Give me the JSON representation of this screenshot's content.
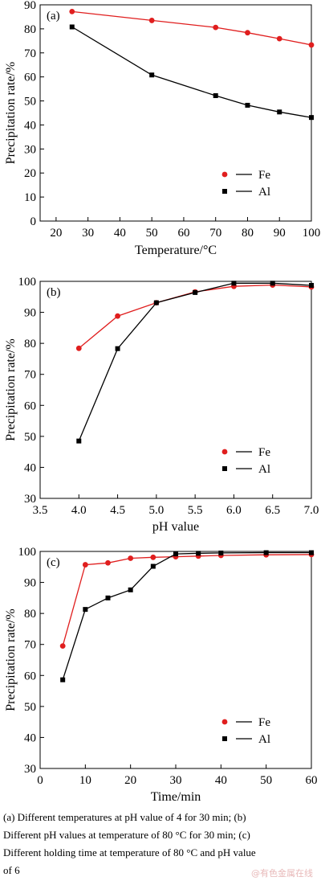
{
  "colors": {
    "fe": "#e01e1e",
    "al": "#000000"
  },
  "chart_data": [
    {
      "type": "line",
      "panel_label": "(a)",
      "xlabel": "Temperature/°C",
      "ylabel": "Precipitation rate/%",
      "xlim": [
        15,
        100
      ],
      "ylim": [
        0,
        90
      ],
      "xticks": [
        20,
        30,
        40,
        50,
        60,
        70,
        80,
        90,
        100
      ],
      "xtick_labels": [
        "20",
        "30",
        "40",
        "50",
        "60",
        "70",
        "80",
        "90",
        "100"
      ],
      "yticks": [
        0,
        10,
        20,
        30,
        40,
        50,
        60,
        70,
        80,
        90
      ],
      "ytick_labels": [
        "0",
        "10",
        "20",
        "30",
        "40",
        "50",
        "60",
        "70",
        "80",
        "90"
      ],
      "legend_position": "lower-right",
      "series": [
        {
          "name": "Fe",
          "color": "#e01e1e",
          "marker": "circle",
          "x": [
            25,
            50,
            70,
            80,
            90,
            100
          ],
          "y": [
            87.2,
            83.5,
            80.6,
            78.4,
            75.9,
            73.3
          ]
        },
        {
          "name": "Al",
          "color": "#000000",
          "marker": "square",
          "x": [
            25,
            50,
            70,
            80,
            90,
            100
          ],
          "y": [
            80.8,
            60.8,
            52.2,
            48.2,
            45.4,
            43.1
          ]
        }
      ]
    },
    {
      "type": "line",
      "panel_label": "(b)",
      "xlabel": "pH value",
      "ylabel": "Precipitation rate/%",
      "xlim": [
        3.5,
        7.0
      ],
      "ylim": [
        30,
        100
      ],
      "xticks": [
        3.5,
        4.0,
        4.5,
        5.0,
        5.5,
        6.0,
        6.5,
        7.0
      ],
      "xtick_labels": [
        "3.5",
        "4.0",
        "4.5",
        "5.0",
        "5.5",
        "6.0",
        "6.5",
        "7.0"
      ],
      "yticks": [
        30,
        40,
        50,
        60,
        70,
        80,
        90,
        100
      ],
      "ytick_labels": [
        "30",
        "40",
        "50",
        "60",
        "70",
        "80",
        "90",
        "100"
      ],
      "legend_position": "lower-right",
      "series": [
        {
          "name": "Fe",
          "color": "#e01e1e",
          "marker": "circle",
          "x": [
            4.0,
            4.5,
            5.0,
            5.5,
            6.0,
            6.5,
            7.0
          ],
          "y": [
            78.4,
            88.8,
            93.1,
            96.6,
            98.4,
            98.8,
            98.2
          ]
        },
        {
          "name": "Al",
          "color": "#000000",
          "marker": "square",
          "x": [
            4.0,
            4.5,
            5.0,
            5.5,
            6.0,
            6.5,
            7.0
          ],
          "y": [
            48.5,
            78.3,
            93.1,
            96.4,
            99.4,
            99.4,
            98.7
          ]
        }
      ]
    },
    {
      "type": "line",
      "panel_label": "(c)",
      "xlabel": "Time/min",
      "ylabel": "Precipitation rate/%",
      "xlim": [
        0,
        60
      ],
      "ylim": [
        30,
        100
      ],
      "xticks": [
        0,
        10,
        20,
        30,
        40,
        50,
        60
      ],
      "xtick_labels": [
        "0",
        "10",
        "20",
        "30",
        "40",
        "50",
        "60"
      ],
      "yticks": [
        30,
        40,
        50,
        60,
        70,
        80,
        90,
        100
      ],
      "ytick_labels": [
        "30",
        "40",
        "50",
        "60",
        "70",
        "80",
        "90",
        "100"
      ],
      "legend_position": "lower-right",
      "series": [
        {
          "name": "Fe",
          "color": "#e01e1e",
          "marker": "circle",
          "x": [
            5,
            10,
            15,
            20,
            25,
            30,
            35,
            40,
            50,
            60
          ],
          "y": [
            69.5,
            95.7,
            96.3,
            97.8,
            98.1,
            98.3,
            98.5,
            98.7,
            98.9,
            99.0
          ]
        },
        {
          "name": "Al",
          "color": "#000000",
          "marker": "square",
          "x": [
            5,
            10,
            15,
            20,
            25,
            30,
            35,
            40,
            50,
            60
          ],
          "y": [
            58.6,
            81.3,
            85.0,
            87.6,
            95.2,
            99.2,
            99.4,
            99.5,
            99.6,
            99.6
          ]
        }
      ]
    }
  ],
  "caption": {
    "line1": "(a) Different temperatures at pH value of 4 for 30 min; (b)",
    "line2": "Different pH values at temperature of 80 °C for 30 min; (c)",
    "line3": "Different holding time at temperature of 80 °C and pH value",
    "line4": "of 6"
  },
  "watermark": "@有色金属在线"
}
